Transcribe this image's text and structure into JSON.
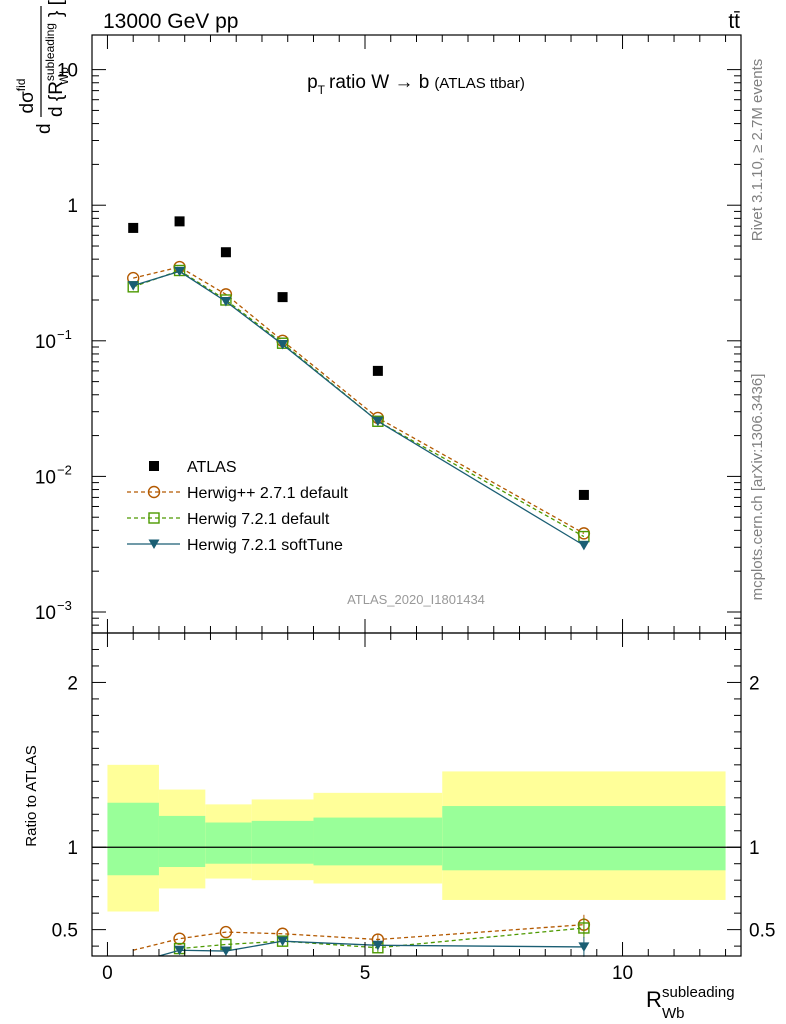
{
  "header": {
    "energy_label": "13000 GeV pp",
    "process_label": "tt̄"
  },
  "side_labels": {
    "rivet": "Rivet 3.1.10, ≥ 2.7M events",
    "mcplots": "mcplots.cern.ch [arXiv:1306.3436]"
  },
  "chart_data": [
    {
      "type": "scatter",
      "title": "p_T ratio W → b (ATLAS ttbar)",
      "analysis_label": "ATLAS_2020_I1801434",
      "yscale": "log",
      "ylim": [
        0.0007,
        18
      ],
      "xlim": [
        -0.3,
        12.3
      ],
      "ylabel": "d dσ^fid / d{R_Wb^subleading} [pb]",
      "xlabel": "R_Wb^subleading",
      "yticks": [
        {
          "value": 0.001,
          "base": "10",
          "exp": "−3"
        },
        {
          "value": 0.01,
          "base": "10",
          "exp": "−2"
        },
        {
          "value": 0.1,
          "base": "10",
          "exp": "−1"
        },
        {
          "value": 1,
          "label": "1"
        },
        {
          "value": 10,
          "label": "10"
        }
      ],
      "legend_position": "lower-left",
      "series": [
        {
          "name": "ATLAS",
          "color": "#000000",
          "marker": "square-filled",
          "line": "none",
          "x": [
            0.5,
            1.4,
            2.3,
            3.4,
            5.25,
            9.25
          ],
          "y": [
            0.68,
            0.76,
            0.45,
            0.21,
            0.06,
            0.0073
          ]
        },
        {
          "name": "Herwig++ 2.7.1 default",
          "color": "#b35900",
          "marker": "circle-open",
          "line": "dashed",
          "x": [
            0.5,
            1.4,
            2.3,
            3.4,
            5.25,
            9.25
          ],
          "y": [
            0.29,
            0.35,
            0.22,
            0.1,
            0.027,
            0.0038
          ]
        },
        {
          "name": "Herwig 7.2.1 default",
          "color": "#4d9900",
          "marker": "square-open",
          "line": "dashed",
          "x": [
            0.5,
            1.4,
            2.3,
            3.4,
            5.25,
            9.25
          ],
          "y": [
            0.25,
            0.33,
            0.2,
            0.096,
            0.0255,
            0.0036
          ]
        },
        {
          "name": "Herwig 7.2.1 softTune",
          "color": "#1a5e73",
          "marker": "triangle-down-filled",
          "line": "solid",
          "x": [
            0.5,
            1.4,
            2.3,
            3.4,
            5.25,
            9.25
          ],
          "y": [
            0.255,
            0.325,
            0.195,
            0.094,
            0.0255,
            0.0031
          ]
        }
      ]
    },
    {
      "type": "line",
      "ylabel": "Ratio to ATLAS",
      "xlabel": "R_Wb^subleading",
      "ylim": [
        0.34,
        2.3
      ],
      "xlim": [
        -0.3,
        12.3
      ],
      "xticks": [
        0,
        5,
        10
      ],
      "yticks": [
        0.5,
        1,
        2
      ],
      "bands": [
        {
          "x0": 0.0,
          "x1": 1.0,
          "yellow": [
            0.61,
            1.5
          ],
          "green": [
            0.83,
            1.27
          ]
        },
        {
          "x0": 1.0,
          "x1": 1.9,
          "yellow": [
            0.75,
            1.35
          ],
          "green": [
            0.88,
            1.19
          ]
        },
        {
          "x0": 1.9,
          "x1": 2.8,
          "yellow": [
            0.81,
            1.26
          ],
          "green": [
            0.9,
            1.15
          ]
        },
        {
          "x0": 2.8,
          "x1": 4.0,
          "yellow": [
            0.8,
            1.29
          ],
          "green": [
            0.9,
            1.16
          ]
        },
        {
          "x0": 4.0,
          "x1": 6.5,
          "yellow": [
            0.78,
            1.33
          ],
          "green": [
            0.89,
            1.18
          ]
        },
        {
          "x0": 6.5,
          "x1": 12.0,
          "yellow": [
            0.68,
            1.46
          ],
          "green": [
            0.86,
            1.25
          ]
        }
      ],
      "band_colors": {
        "outer": "#ffff99",
        "inner": "#99ff99"
      },
      "series": [
        {
          "name": "Herwig++ 2.7.1 default",
          "color": "#b35900",
          "marker": "circle-open",
          "line": "dashed",
          "x": [
            0.5,
            1.4,
            2.3,
            3.4,
            5.25,
            9.25
          ],
          "y": [
            0.375,
            0.445,
            0.485,
            0.475,
            0.44,
            0.53
          ]
        },
        {
          "name": "Herwig 7.2.1 default",
          "color": "#4d9900",
          "marker": "square-open",
          "line": "dashed",
          "x": [
            1.4,
            2.3,
            3.4,
            5.25,
            9.25
          ],
          "y": [
            0.385,
            0.41,
            0.43,
            0.39,
            0.51
          ]
        },
        {
          "name": "Herwig 7.2.1 softTune",
          "color": "#1a5e73",
          "marker": "triangle-down-filled",
          "line": "solid",
          "x": [
            1.0,
            1.4,
            2.3,
            3.4,
            5.25,
            9.25
          ],
          "y": [
            0.34,
            0.375,
            0.37,
            0.43,
            0.405,
            0.395
          ]
        }
      ]
    }
  ]
}
